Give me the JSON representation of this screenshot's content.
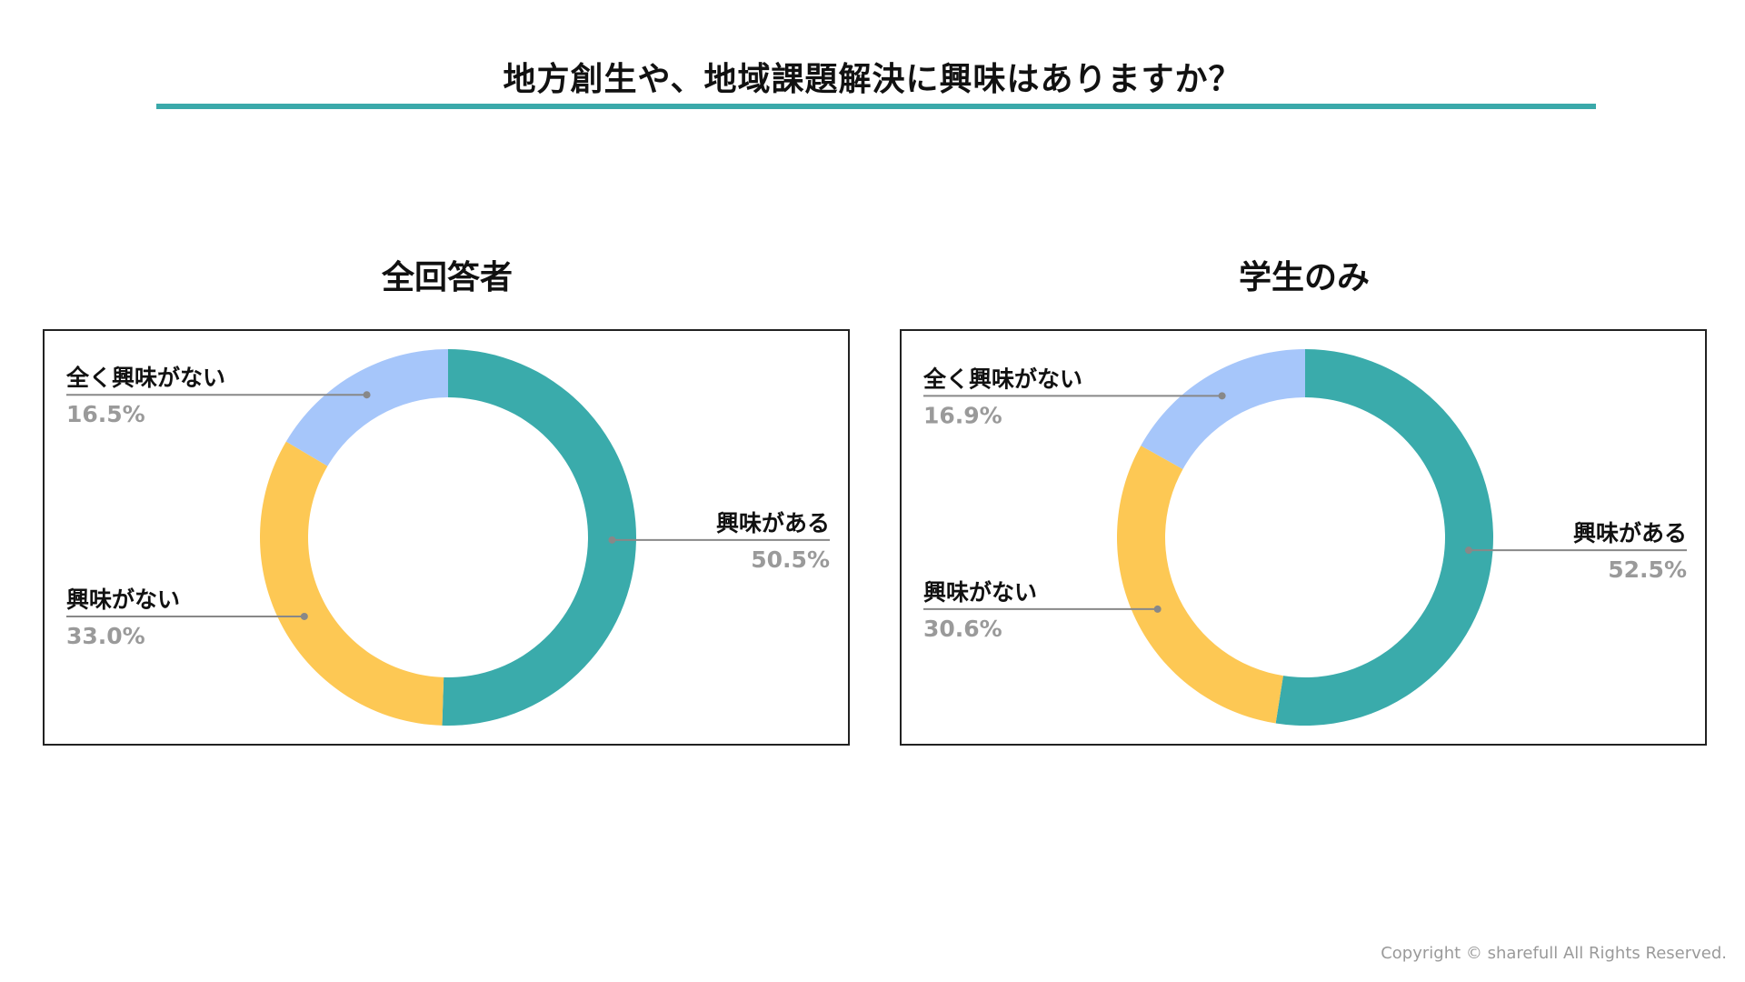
{
  "page": {
    "title": "地方創生や、地域課題解決に興味はありますか？",
    "accent_color": "#3aa9aa",
    "copyright": "Copyright © sharefull All Rights Reserved."
  },
  "chart_data": [
    {
      "type": "pie",
      "donut": true,
      "title": "全回答者",
      "slices": [
        {
          "label": "興味がある",
          "value": 50.5,
          "value_label": "50.5%",
          "color": "#3aabab"
        },
        {
          "label": "興味がない",
          "value": 33.0,
          "value_label": "33.0%",
          "color": "#fdc854"
        },
        {
          "label": "全く興味がない",
          "value": 16.5,
          "value_label": "16.5%",
          "color": "#a6c6fa"
        }
      ]
    },
    {
      "type": "pie",
      "donut": true,
      "title": "学生のみ",
      "slices": [
        {
          "label": "興味がある",
          "value": 52.5,
          "value_label": "52.5%",
          "color": "#3aabab"
        },
        {
          "label": "興味がない",
          "value": 30.6,
          "value_label": "30.6%",
          "color": "#fdc854"
        },
        {
          "label": "全く興味がない",
          "value": 16.9,
          "value_label": "16.9%",
          "color": "#a6c6fa"
        }
      ]
    }
  ]
}
